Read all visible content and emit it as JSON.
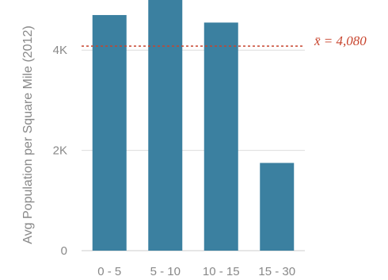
{
  "chart_data": {
    "type": "bar",
    "title": "",
    "xlabel": "",
    "ylabel": "Avg Population per Square Mile (2012)",
    "categories": [
      "0 - 5",
      "5 - 10",
      "10 - 15",
      "15 - 30"
    ],
    "values": [
      4700,
      5000,
      4550,
      1750
    ],
    "ylim": [
      0,
      5000
    ],
    "y_ticks": [
      {
        "value": 0,
        "label": "0"
      },
      {
        "value": 2000,
        "label": "2K"
      },
      {
        "value": 4000,
        "label": "4K"
      }
    ],
    "grid": true,
    "bar_color": "#3b80a0",
    "reference_line": {
      "value": 4080,
      "label": "x̄ = 4,080",
      "color": "#c8452e",
      "style": "dotted"
    }
  }
}
